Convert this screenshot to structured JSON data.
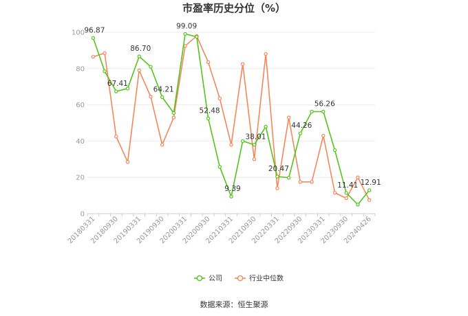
{
  "chart_data": {
    "type": "line",
    "title": "市盈率历史分位（%）",
    "ylim": [
      0,
      100
    ],
    "yticks": [
      "0",
      "20",
      "40",
      "60",
      "80",
      "100"
    ],
    "x_tick_labels": [
      "20180331",
      "20180930",
      "20190331",
      "20190930",
      "20200331",
      "20200930",
      "20210331",
      "20210930",
      "20220331",
      "20220930",
      "20230331",
      "20230930",
      "20240426"
    ],
    "grid": true,
    "legend_position": "bottom",
    "series": [
      {
        "name": "公司",
        "color": "#52c41a",
        "values": [
          96.87,
          78.5,
          67.41,
          69.0,
          86.7,
          81.0,
          64.21,
          55.5,
          99.09,
          97.5,
          52.48,
          25.8,
          9.39,
          40.0,
          38.01,
          48.0,
          20.47,
          19.8,
          44.26,
          56.26,
          56.26,
          35.0,
          11.41,
          5.0,
          12.91
        ],
        "labels": {
          "0": "96.87",
          "2": "67.41",
          "4": "86.70",
          "6": "64.21",
          "8": "99.09",
          "10": "52.48",
          "12": "9.39",
          "14": "38.01",
          "16": "20.47",
          "18": "44.26",
          "20": "56.26",
          "22": "11.41",
          "24": "12.91"
        }
      },
      {
        "name": "行业中位数",
        "color": "#f4875a",
        "values": [
          86.5,
          88.5,
          42.5,
          28.5,
          79.0,
          64.5,
          38.0,
          53.0,
          92.5,
          98.0,
          83.5,
          63.5,
          38.0,
          82.5,
          30.0,
          88.0,
          14.0,
          53.0,
          17.5,
          17.5,
          43.0,
          11.5,
          8.5,
          20.0,
          7.5
        ]
      }
    ]
  },
  "legend": {
    "items": [
      {
        "name": "公司",
        "color": "#52c41a"
      },
      {
        "name": "行业中位数",
        "color": "#f4875a"
      }
    ]
  },
  "footer": {
    "source": "数据来源：恒生聚源"
  }
}
